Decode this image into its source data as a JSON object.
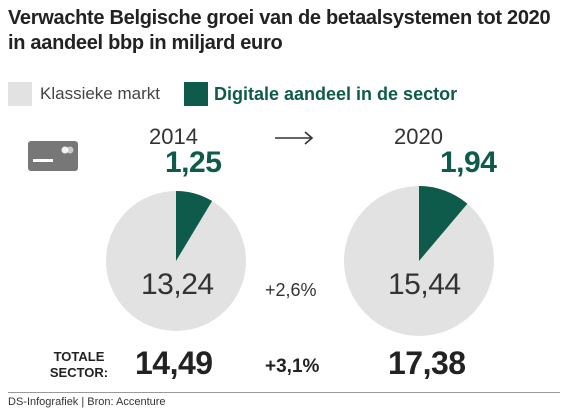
{
  "title": "Verwachte Belgische groei van de betaalsystemen tot 2020 in aandeel bbp in miljard euro",
  "legend": {
    "classic": "Klassieke markt",
    "digital": "Digitale aandeel in de sector"
  },
  "colors": {
    "classic": "#e2e2e2",
    "digital": "#0e5b4c"
  },
  "icons": {
    "card": "credit-card-icon",
    "arrow": "arrow-right-icon"
  },
  "chart_data": {
    "type": "pie",
    "series": [
      {
        "year": "2014",
        "classic": 13.24,
        "digital": 1.25,
        "classic_label": "13,24",
        "digital_label": "1,25"
      },
      {
        "year": "2020",
        "classic": 15.44,
        "digital": 1.94,
        "classic_label": "15,44",
        "digital_label": "1,94"
      }
    ],
    "growth_classic": "+2,6%",
    "total": {
      "label": "TOTALE SECTOR:",
      "values": [
        "14,49",
        "17,38"
      ],
      "growth": "+3,1%"
    }
  },
  "footer": "DS-Infografiek | Bron: Accenture"
}
